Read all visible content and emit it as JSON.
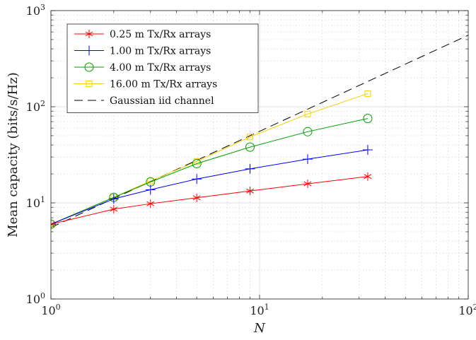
{
  "chart_data": {
    "type": "line",
    "title": "",
    "xlabel": "N",
    "ylabel": "Mean capacity (bits/s/Hz)",
    "xscale": "log",
    "yscale": "log",
    "xlim": [
      1,
      100
    ],
    "ylim": [
      1,
      1000
    ],
    "grid": "on (major and minor)",
    "legend_placement": "top-left",
    "x_ticks": [
      {
        "value": 1,
        "base": "10",
        "exp": "0"
      },
      {
        "value": 10,
        "base": "10",
        "exp": "1"
      },
      {
        "value": 100,
        "base": "10",
        "exp": "2"
      }
    ],
    "y_ticks": [
      {
        "value": 1,
        "base": "10",
        "exp": "0"
      },
      {
        "value": 10,
        "base": "10",
        "exp": "1"
      },
      {
        "value": 100,
        "base": "10",
        "exp": "2"
      },
      {
        "value": 1000,
        "base": "10",
        "exp": "3"
      }
    ],
    "series": [
      {
        "name": "0.25 m Tx/Rx arrays",
        "color": "#ff0000",
        "marker": "asterisk",
        "x": [
          1,
          2,
          3,
          5,
          9,
          17,
          33
        ],
        "y": [
          6.0,
          8.6,
          9.8,
          11.3,
          13.3,
          15.8,
          18.8
        ]
      },
      {
        "name": "1.00 m Tx/Rx arrays",
        "color": "#0000ff",
        "marker": "plus",
        "x": [
          1,
          2,
          3,
          5,
          9,
          17,
          33
        ],
        "y": [
          6.0,
          11.0,
          13.7,
          17.7,
          22.6,
          28.5,
          35.6
        ]
      },
      {
        "name": "4.00 m Tx/Rx arrays",
        "color": "#00a000",
        "marker": "circle",
        "x": [
          1,
          2,
          3,
          5,
          9,
          17,
          33
        ],
        "y": [
          6.0,
          11.4,
          16.5,
          25.6,
          38.0,
          55.0,
          75.5
        ]
      },
      {
        "name": "16.00 m Tx/Rx arrays",
        "color": "#f5d000",
        "marker": "square",
        "x": [
          1,
          2,
          3,
          5,
          9,
          17,
          33
        ],
        "y": [
          6.0,
          11.4,
          16.9,
          27.0,
          48.5,
          84.0,
          137.0
        ]
      },
      {
        "name": "Gaussian iid channel",
        "color": "#000000",
        "marker": "none",
        "dash": "dashed",
        "x": [
          1,
          100
        ],
        "y": [
          5.55,
          555
        ]
      }
    ]
  }
}
